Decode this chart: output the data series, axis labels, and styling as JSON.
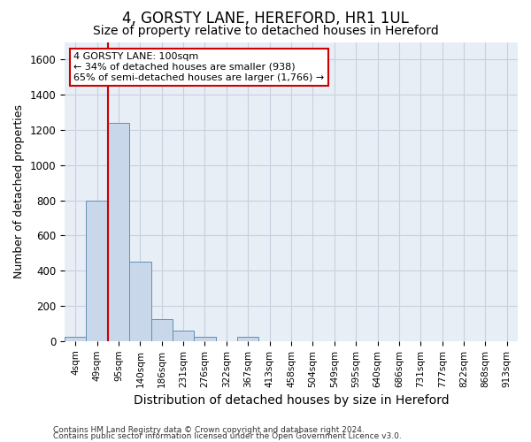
{
  "title": "4, GORSTY LANE, HEREFORD, HR1 1UL",
  "subtitle": "Size of property relative to detached houses in Hereford",
  "xlabel": "Distribution of detached houses by size in Hereford",
  "ylabel": "Number of detached properties",
  "footnote1": "Contains HM Land Registry data © Crown copyright and database right 2024.",
  "footnote2": "Contains public sector information licensed under the Open Government Licence v3.0.",
  "bar_color": "#c8d8ea",
  "bar_edge_color": "#6090b8",
  "categories": [
    "4sqm",
    "49sqm",
    "95sqm",
    "140sqm",
    "186sqm",
    "231sqm",
    "276sqm",
    "322sqm",
    "367sqm",
    "413sqm",
    "458sqm",
    "504sqm",
    "549sqm",
    "595sqm",
    "640sqm",
    "686sqm",
    "731sqm",
    "777sqm",
    "822sqm",
    "868sqm",
    "913sqm"
  ],
  "values": [
    25,
    800,
    1240,
    450,
    125,
    60,
    25,
    0,
    25,
    0,
    0,
    0,
    0,
    0,
    0,
    0,
    0,
    0,
    0,
    0,
    0
  ],
  "ylim": [
    0,
    1700
  ],
  "yticks": [
    0,
    200,
    400,
    600,
    800,
    1000,
    1200,
    1400,
    1600
  ],
  "vline_position": 1.5,
  "annotation_line1": "4 GORSTY LANE: 100sqm",
  "annotation_line2": "← 34% of detached houses are smaller (938)",
  "annotation_line3": "65% of semi-detached houses are larger (1,766) →",
  "annotation_box_color": "#ffffff",
  "annotation_border_color": "#cc0000",
  "grid_color": "#c8d0de",
  "background_color": "#e8eef6",
  "title_fontsize": 12,
  "subtitle_fontsize": 10,
  "xlabel_fontsize": 10,
  "ylabel_fontsize": 9
}
